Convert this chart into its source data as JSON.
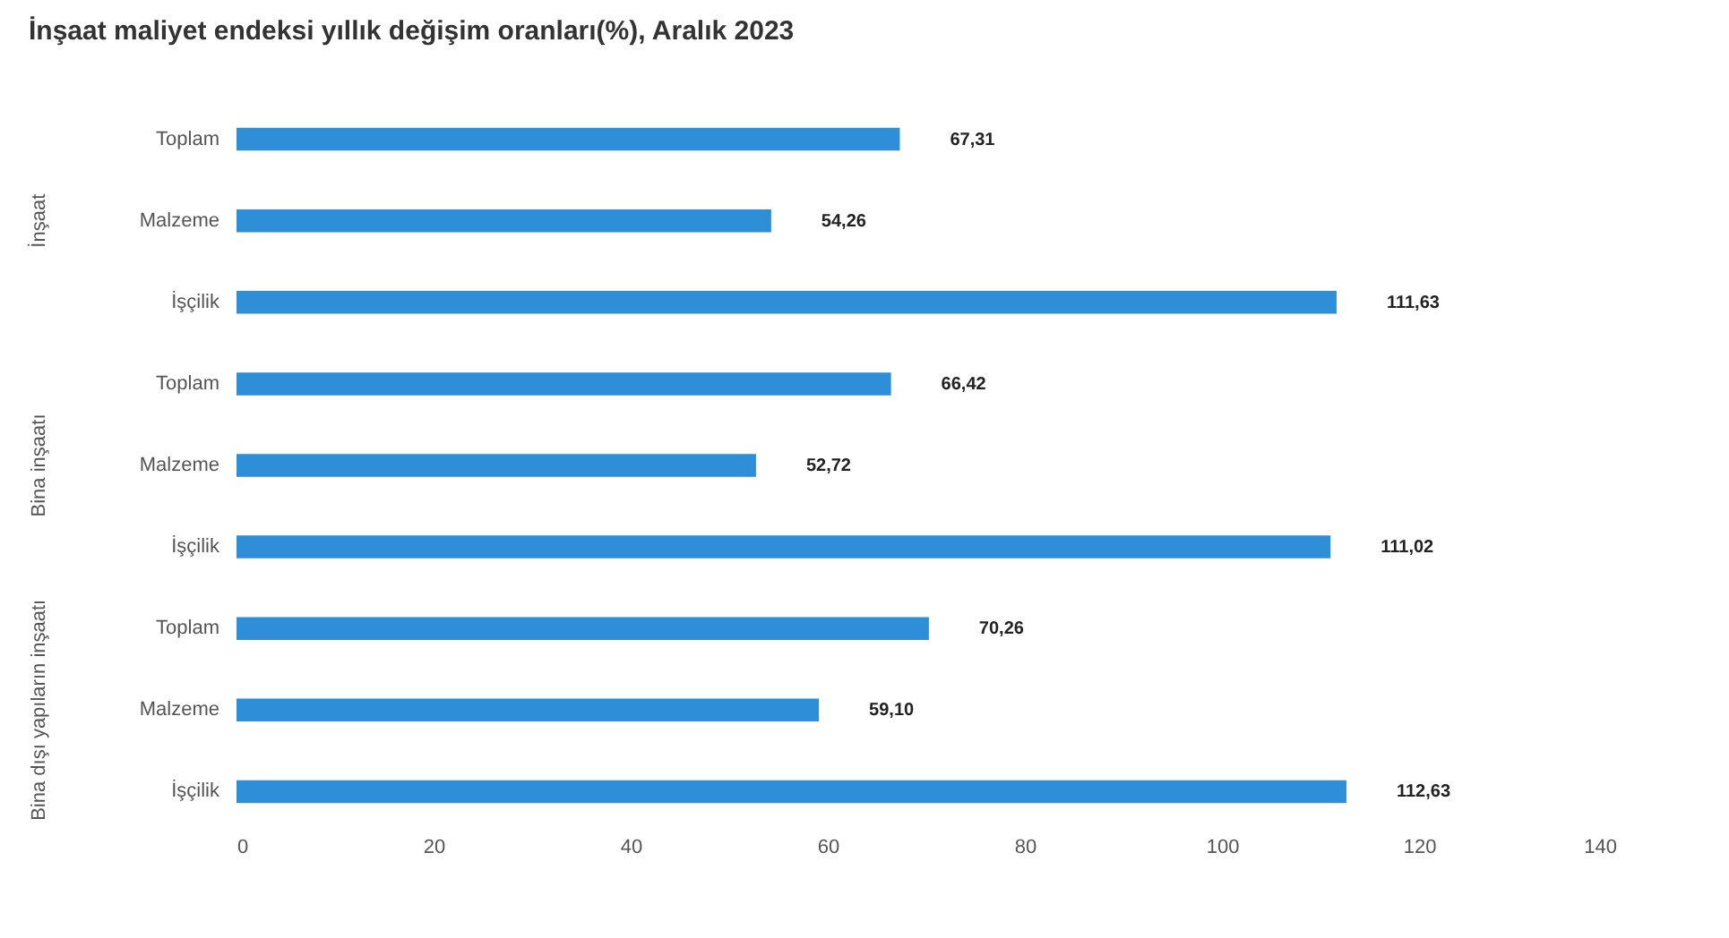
{
  "chart_data": {
    "type": "bar",
    "orientation": "horizontal",
    "title": "İnşaat maliyet endeksi yıllık değişim oranları(%), Aralık 2023",
    "categories": [
      "Toplam",
      "Malzeme",
      "İşçilik",
      "Toplam",
      "Malzeme",
      "İşçilik",
      "Toplam",
      "Malzeme",
      "İşçilik"
    ],
    "values": [
      67.31,
      54.26,
      111.63,
      66.42,
      52.72,
      111.02,
      70.26,
      59.1,
      112.63
    ],
    "value_labels": [
      "67,31",
      "54,26",
      "111,63",
      "66,42",
      "52,72",
      "111,02",
      "70,26",
      "59,10",
      "112,63"
    ],
    "color": "#2e8fd8",
    "annotations": [
      "İnşaat",
      "Bina inşaatı",
      "Bina dışı yapıların inşaatı"
    ],
    "xlim": [
      0,
      140
    ],
    "xticks": [
      0,
      20,
      40,
      60,
      80,
      100,
      120,
      140
    ],
    "grid": false
  }
}
